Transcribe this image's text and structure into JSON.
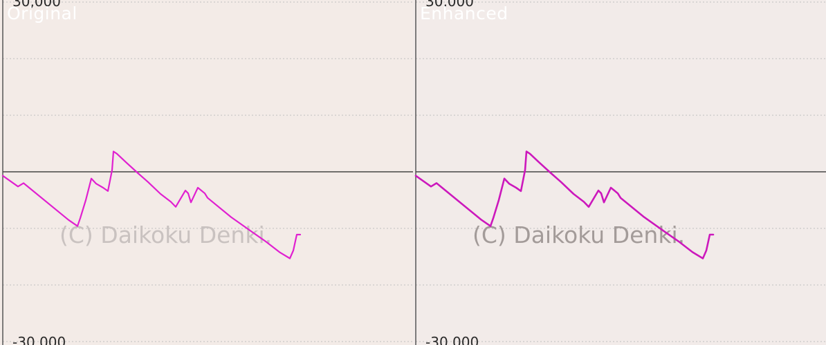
{
  "panels": [
    {
      "id": "original",
      "label": "Original"
    },
    {
      "id": "enhanced",
      "label": "Enhanced"
    }
  ],
  "colors": {
    "line": "#e020d0",
    "line_enhanced": "#cc18bc",
    "zero_line": "#444444",
    "grid": "#bfbfbf",
    "axis": "#555555",
    "watermark": "#c9c2c0",
    "watermark_enhanced": "#a39b99"
  },
  "watermark": "(C) Daikoku Denki.",
  "chart_data": {
    "type": "line",
    "title": "",
    "xlabel": "",
    "ylabel": "",
    "ylim": [
      -30000,
      30000
    ],
    "yticks": [
      30000,
      -30000
    ],
    "ytick_labels": [
      "30,000",
      "-30,000"
    ],
    "gridlines": [
      30000,
      20000,
      10000,
      0,
      -10000,
      -20000,
      -30000
    ],
    "grid": true,
    "series": [
      {
        "name": "",
        "x": [
          0,
          22,
          30,
          95,
          108,
          112,
          120,
          128,
          135,
          145,
          152,
          158,
          160,
          165,
          178,
          196,
          210,
          228,
          243,
          250,
          264,
          268,
          272,
          282,
          292,
          296,
          330,
          360,
          380,
          400,
          415,
          420,
          425,
          430
        ],
        "y": [
          -700,
          -2600,
          -2000,
          -8500,
          -9600,
          -8200,
          -5000,
          -1200,
          -2100,
          -2800,
          -3400,
          300,
          3600,
          3200,
          1700,
          -300,
          -1800,
          -3900,
          -5300,
          -6200,
          -3300,
          -3800,
          -5400,
          -2800,
          -3800,
          -4600,
          -8000,
          -10600,
          -12300,
          -14200,
          -15300,
          -13900,
          -11100,
          -11100
        ]
      }
    ]
  }
}
